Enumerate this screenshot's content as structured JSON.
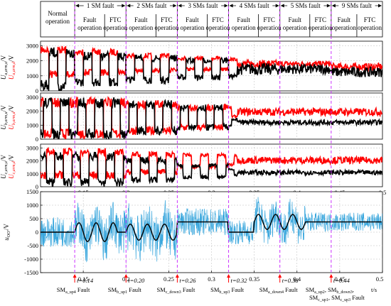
{
  "header": {
    "phases": [
      {
        "label": "Normal\noperation"
      },
      {
        "label": "1 SM fault"
      },
      {
        "label": "2 SMs fault"
      },
      {
        "label": "3 SMs fault"
      },
      {
        "label": "4 SMs fault"
      },
      {
        "label": "5 SMs fault"
      },
      {
        "label": "9 SMs fault"
      }
    ],
    "sub_fault": "Fault\noperation",
    "sub_ftc": "FTC\noperation"
  },
  "chart_data": [
    {
      "type": "line",
      "panel": "a",
      "ylabel_upper": "U",
      "ylabel_upper_sub": "a,arm,u",
      "ylabel_lower": "U",
      "ylabel_lower_sub": "a,arm,d",
      "ylabel_unit": "/V",
      "ylim": [
        0,
        3300
      ],
      "yticks": [
        "0",
        "1000",
        "2000",
        "3000"
      ],
      "xlim": [
        0.1,
        0.5
      ],
      "series": [
        {
          "color": "#ff0000",
          "levels": [
            [
              0.1,
              800,
              3000
            ],
            [
              0.14,
              1000,
              2800
            ],
            [
              0.2,
              1200,
              2500
            ],
            [
              0.26,
              1300,
              2300
            ],
            [
              0.32,
              1400,
              2200
            ],
            [
              0.38,
              1500,
              2100
            ],
            [
              0.44,
              1200,
              2000
            ]
          ]
        },
        {
          "color": "#000000",
          "levels": [
            [
              0.1,
              0,
              2900
            ],
            [
              0.14,
              300,
              2600
            ],
            [
              0.2,
              500,
              2400
            ],
            [
              0.26,
              700,
              2200
            ],
            [
              0.32,
              800,
              2100
            ],
            [
              0.38,
              900,
              2000
            ],
            [
              0.44,
              700,
              1800
            ]
          ]
        }
      ]
    },
    {
      "type": "line",
      "panel": "b",
      "ylabel_upper": "U",
      "ylabel_upper_sub": "b,arm,u",
      "ylabel_lower": "U",
      "ylabel_lower_sub": "b,arm,d",
      "ylabel_unit": "/V",
      "ylim": [
        0,
        3300
      ],
      "yticks": [
        "0",
        "1000",
        "2000",
        "3000"
      ],
      "xlim": [
        0.1,
        0.5
      ],
      "series": [
        {
          "color": "#ff0000",
          "levels": [
            [
              0.1,
              0,
              3000
            ],
            [
              0.2,
              300,
              2800
            ],
            [
              0.26,
              600,
              2500
            ],
            [
              0.32,
              1500,
              2400
            ]
          ]
        },
        {
          "color": "#000000",
          "levels": [
            [
              0.1,
              0,
              3000
            ],
            [
              0.2,
              300,
              2800
            ],
            [
              0.26,
              600,
              2500
            ],
            [
              0.32,
              900,
              1500
            ]
          ]
        }
      ]
    },
    {
      "type": "line",
      "panel": "c",
      "ylabel_upper": "U",
      "ylabel_upper_sub": "c,arm,u",
      "ylabel_lower": "U",
      "ylabel_lower_sub": "c,arm,d",
      "ylabel_unit": "/V",
      "ylim": [
        0,
        3300
      ],
      "yticks": [
        "0",
        "1000",
        "2000",
        "3000"
      ],
      "xlim": [
        0.1,
        0.5
      ],
      "xticks": [
        "0.15",
        "0.2",
        "0.25",
        "0.3",
        "0.35",
        "0.4",
        "0.45",
        "0.5"
      ],
      "series": [
        {
          "color": "#ff0000",
          "levels": [
            [
              0.1,
              600,
              3000
            ],
            [
              0.2,
              900,
              2700
            ],
            [
              0.26,
              1400,
              2600
            ],
            [
              0.32,
              1600,
              2500
            ]
          ]
        },
        {
          "color": "#000000",
          "levels": [
            [
              0.1,
              0,
              2700
            ],
            [
              0.2,
              300,
              2300
            ],
            [
              0.26,
              600,
              1800
            ],
            [
              0.32,
              800,
              1400
            ]
          ]
        }
      ]
    },
    {
      "type": "line",
      "panel": "d",
      "ylabel": "u",
      "ylabel_sub": "OO'",
      "ylabel_unit": "/V",
      "ylim": [
        -1500,
        1500
      ],
      "yticks": [
        "-1500",
        "-1000",
        "-500",
        "0",
        "500",
        "1000",
        "1500"
      ],
      "xlim": [
        0.1,
        0.5
      ],
      "xticks": [
        "0.15",
        "0.2",
        "0.25",
        "0.3",
        "0.35",
        "0.4",
        "0.45",
        "0.5"
      ],
      "xunit": "t/s",
      "series": [
        {
          "color": "#3aa7dd",
          "name": ""
        },
        {
          "color": "#000000",
          "name": ""
        }
      ],
      "events": [
        {
          "t": 0.14,
          "time_label": "t=0.14",
          "label": "SM",
          "sub": "a_up4",
          "suffix": " Fault"
        },
        {
          "t": 0.2,
          "time_label": "t=0.20",
          "label": "SM",
          "sub": "b_up1",
          "suffix": " Fault"
        },
        {
          "t": 0.26,
          "time_label": "t=0.26",
          "label": "SM",
          "sub": "c_down3",
          "suffix": " Fault"
        },
        {
          "t": 0.32,
          "time_label": "t=0.32",
          "label": "SM",
          "sub": "b_up3",
          "suffix": " Fault"
        },
        {
          "t": 0.38,
          "time_label": "t=0.38",
          "label": "SM",
          "sub": "a_down4",
          "suffix": " Fault"
        },
        {
          "t": 0.44,
          "time_label": "t=0.44",
          "label": "SM",
          "sub": "a_up2",
          "suffix": ", SM",
          "sub2": "b_down3",
          "suffix2": ",",
          "line2": "SM",
          "sub3": "c_up1",
          "suffix3": ", SM",
          "sub4": "c_up3",
          "suffix4": " Fault"
        }
      ]
    }
  ],
  "colors": {
    "red": "#ff0000",
    "black": "#000000",
    "blue": "#3aa7dd",
    "guide": "#cc33ff",
    "arrow": "#ff0000"
  }
}
